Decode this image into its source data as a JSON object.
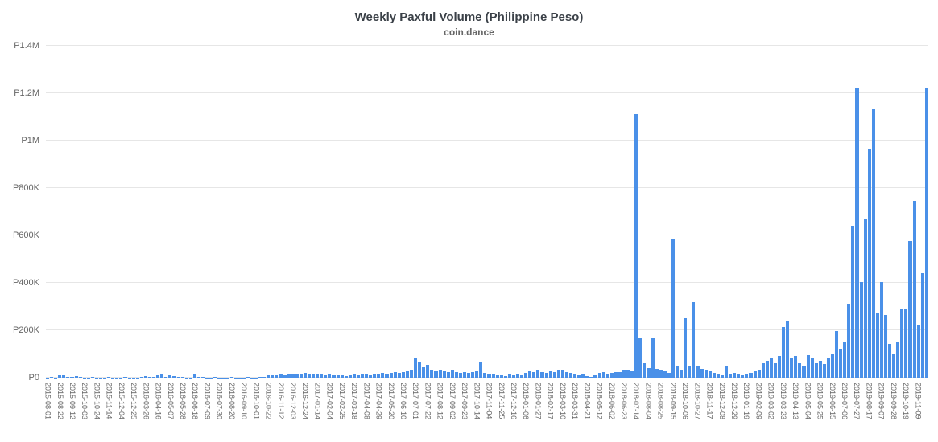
{
  "chart_data": {
    "type": "bar",
    "title": "Weekly Paxful Volume (Philippine Peso)",
    "subtitle": "coin.dance",
    "currency_prefix": "P",
    "ylim": [
      0,
      1400000
    ],
    "grid": true,
    "legend": false,
    "bar_color": "#4a90e8",
    "grid_color": "#e6e6e6",
    "axis_label_color": "#666666",
    "title_color": "#3b4148",
    "y_ticks": [
      {
        "value": 0,
        "label": "P0"
      },
      {
        "value": 200000,
        "label": "P200K"
      },
      {
        "value": 400000,
        "label": "P400K"
      },
      {
        "value": 600000,
        "label": "P600K"
      },
      {
        "value": 800000,
        "label": "P800K"
      },
      {
        "value": 1000000,
        "label": "P1M"
      },
      {
        "value": 1200000,
        "label": "P1.2M"
      },
      {
        "value": 1400000,
        "label": "P1.4M"
      }
    ],
    "bars_per_tick": 3,
    "x_tick_labels": [
      "2015-08-01",
      "2015-08-22",
      "2015-09-12",
      "2015-10-03",
      "2015-10-24",
      "2015-11-14",
      "2015-12-04",
      "2015-12-25",
      "2016-03-26",
      "2016-04-16",
      "2016-05-07",
      "2016-05-28",
      "2016-06-18",
      "2016-07-09",
      "2016-07-30",
      "2016-08-20",
      "2016-09-10",
      "2016-10-01",
      "2016-10-22",
      "2016-11-12",
      "2016-12-03",
      "2016-12-24",
      "2017-01-14",
      "2017-02-04",
      "2017-02-25",
      "2017-03-18",
      "2017-04-08",
      "2017-04-29",
      "2017-05-20",
      "2017-06-10",
      "2017-07-01",
      "2017-07-22",
      "2017-08-12",
      "2017-09-02",
      "2017-09-23",
      "2017-10-14",
      "2017-11-04",
      "2017-11-25",
      "2017-12-16",
      "2018-01-06",
      "2018-01-27",
      "2018-02-17",
      "2018-03-10",
      "2018-03-31",
      "2018-04-21",
      "2018-05-12",
      "2018-06-02",
      "2018-06-23",
      "2018-07-14",
      "2018-08-04",
      "2018-08-25",
      "2018-09-15",
      "2018-10-06",
      "2018-10-27",
      "2018-11-17",
      "2018-12-08",
      "2018-12-29",
      "2019-01-19",
      "2019-02-09",
      "2019-03-02",
      "2019-03-23",
      "2019-04-13",
      "2019-05-04",
      "2019-05-25",
      "2019-06-15",
      "2019-07-06",
      "2019-07-27",
      "2019-08-17",
      "2019-09-07",
      "2019-09-28",
      "2019-10-19",
      "2019-11-09"
    ],
    "values": [
      1000,
      2500,
      1500,
      9000,
      11000,
      3000,
      2000,
      8000,
      2500,
      1500,
      1000,
      2000,
      1000,
      1500,
      1000,
      2000,
      1000,
      1500,
      1000,
      2000,
      1000,
      1500,
      1000,
      2000,
      8000,
      3000,
      2000,
      10000,
      12000,
      5000,
      9000,
      7000,
      3000,
      2000,
      1500,
      1000,
      17000,
      3000,
      2000,
      1500,
      1000,
      2000,
      1000,
      1500,
      1000,
      2000,
      1000,
      1500,
      1000,
      2000,
      1000,
      1500,
      2500,
      5000,
      9000,
      11000,
      10000,
      13000,
      10000,
      12000,
      15000,
      12000,
      18000,
      22000,
      16000,
      13000,
      15000,
      12000,
      10000,
      12000,
      9000,
      11000,
      10000,
      8000,
      9500,
      12000,
      10000,
      14000,
      13000,
      11000,
      15000,
      16000,
      19000,
      17000,
      21000,
      25000,
      19000,
      23000,
      27000,
      30000,
      80000,
      68000,
      45000,
      55000,
      32000,
      28000,
      34000,
      27000,
      23000,
      31000,
      25000,
      21000,
      23000,
      19000,
      25000,
      27000,
      63000,
      21000,
      17000,
      12000,
      9000,
      11000,
      7000,
      13000,
      9000,
      15000,
      11000,
      19000,
      27000,
      23000,
      31000,
      25000,
      21000,
      27000,
      23000,
      29000,
      35000,
      25000,
      19000,
      15000,
      11000,
      17000,
      7000,
      5000,
      9000,
      19000,
      23000,
      17000,
      21000,
      25000,
      23000,
      29000,
      32000,
      27000,
      1113000,
      165000,
      60000,
      42000,
      168000,
      36000,
      31000,
      26000,
      21000,
      585000,
      46000,
      31000,
      250000,
      46000,
      320000,
      46000,
      36000,
      31000,
      26000,
      21000,
      16000,
      11000,
      46000,
      16000,
      21000,
      16000,
      11000,
      16000,
      21000,
      26000,
      31000,
      62000,
      72000,
      82000,
      62000,
      92000,
      212000,
      236000,
      82000,
      92000,
      62000,
      46000,
      96000,
      86000,
      62000,
      72000,
      56000,
      82000,
      102000,
      196000,
      122000,
      152000,
      312000,
      642000,
      1224000,
      402000,
      672000,
      962000,
      1132000,
      272000,
      402000,
      266000,
      142000,
      102000,
      152000,
      292000,
      292000,
      576000,
      746000,
      222000,
      442000,
      1224000
    ]
  }
}
